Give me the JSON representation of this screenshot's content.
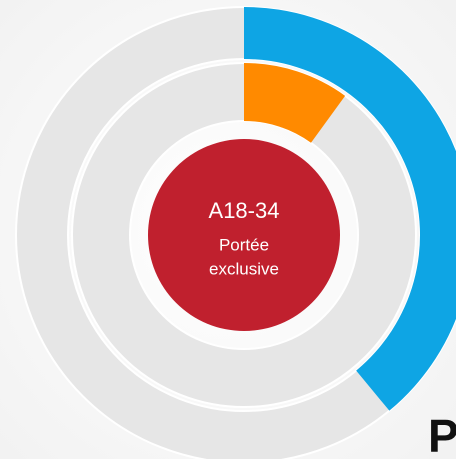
{
  "chart_data": {
    "type": "donut",
    "series": [
      {
        "name": null,
        "color": "#0ea5e4",
        "values": [
          39
        ]
      },
      {
        "name": null,
        "color": "#ff8a00",
        "values": [
          10
        ]
      }
    ],
    "max": 100,
    "track_color": "#e6e6e6",
    "center_color": "#c0202e",
    "center_title": "A18-34",
    "center_lines": [
      "Portée",
      "exclusive"
    ],
    "corner_text": "P"
  }
}
